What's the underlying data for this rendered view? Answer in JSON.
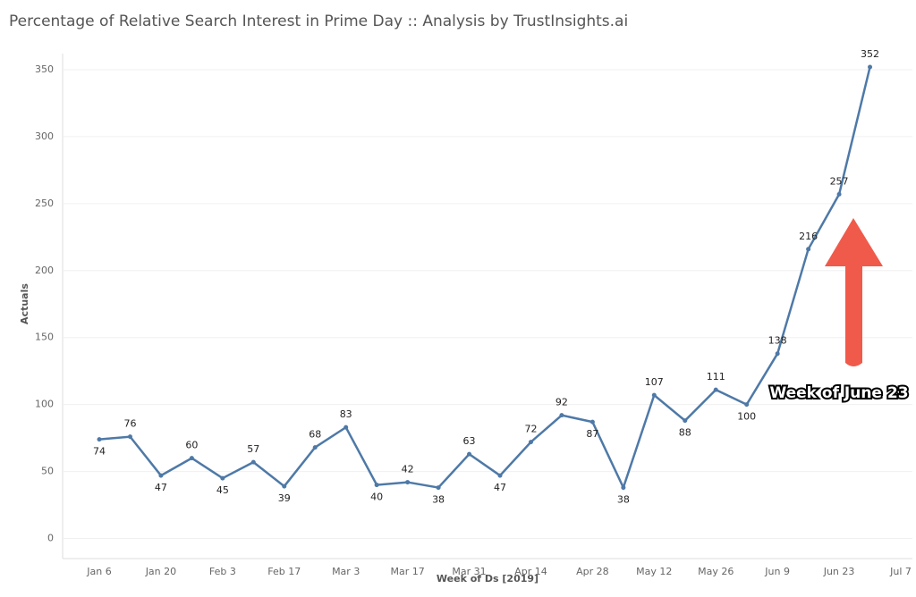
{
  "chart_data": {
    "type": "line",
    "title": "Percentage of Relative Search Interest in Prime Day :: Analysis by TrustInsights.ai",
    "x_label": "Week of Ds [2019]",
    "y_label": "Actuals",
    "categories": [
      "Jan 6",
      null,
      "Jan 20",
      null,
      "Feb 3",
      null,
      "Feb 17",
      null,
      "Mar 3",
      null,
      "Mar 17",
      null,
      "Mar 31",
      null,
      "Apr 14",
      null,
      "Apr 28",
      null,
      "May 12",
      null,
      "May 26",
      null,
      "Jun 9",
      null,
      "Jun 23",
      null,
      "Jul 7"
    ],
    "series": [
      {
        "name": "Actuals",
        "color": "#4e79a7",
        "values": [
          74,
          76,
          47,
          60,
          45,
          57,
          39,
          68,
          83,
          40,
          42,
          38,
          63,
          47,
          72,
          92,
          87,
          38,
          107,
          88,
          111,
          100,
          138,
          216,
          257,
          352,
          null
        ]
      }
    ],
    "ylim": [
      -15,
      362
    ],
    "yticks": [
      0,
      50,
      100,
      150,
      200,
      250,
      300,
      350
    ],
    "grid": true,
    "annotation": "Week of June 23"
  }
}
